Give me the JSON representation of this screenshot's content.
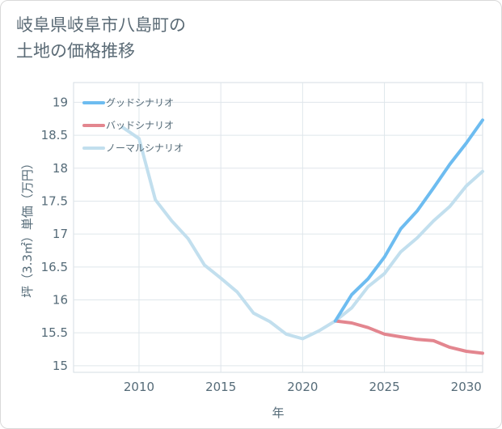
{
  "title_lines": [
    "岐阜県岐阜市八島町の",
    "土地の価格推移"
  ],
  "chart_data": {
    "type": "line",
    "xlabel": "年",
    "ylabel": "坪（3.3㎡）単価（万円）",
    "xlim": [
      2006,
      2031
    ],
    "ylim": [
      14.9,
      19.3
    ],
    "xticks": [
      2010,
      2015,
      2020,
      2025,
      2030
    ],
    "yticks": [
      15,
      15.5,
      16,
      16.5,
      17,
      17.5,
      18,
      18.5,
      19
    ],
    "ytick_labels": [
      "15",
      "15.5",
      "16",
      "16.5",
      "17",
      "17.5",
      "18",
      "18.5",
      "19"
    ],
    "grid": true,
    "legend_position": "top-left",
    "series": [
      {
        "name": "グッドシナリオ",
        "color": "#6dbcf0",
        "points": [
          [
            2022,
            15.68
          ],
          [
            2023,
            16.08
          ],
          [
            2024,
            16.32
          ],
          [
            2025,
            16.65
          ],
          [
            2026,
            17.08
          ],
          [
            2027,
            17.35
          ],
          [
            2028,
            17.7
          ],
          [
            2029,
            18.06
          ],
          [
            2030,
            18.38
          ],
          [
            2031,
            18.73
          ]
        ]
      },
      {
        "name": "バッドシナリオ",
        "color": "#e3868f",
        "points": [
          [
            2022,
            15.68
          ],
          [
            2023,
            15.65
          ],
          [
            2024,
            15.58
          ],
          [
            2025,
            15.48
          ],
          [
            2026,
            15.44
          ],
          [
            2027,
            15.4
          ],
          [
            2028,
            15.38
          ],
          [
            2029,
            15.28
          ],
          [
            2030,
            15.22
          ],
          [
            2031,
            15.19
          ]
        ]
      },
      {
        "name": "ノーマルシナリオ",
        "color": "#c2dfee",
        "points": [
          [
            2009,
            18.62
          ],
          [
            2010,
            18.45
          ],
          [
            2011,
            17.52
          ],
          [
            2012,
            17.2
          ],
          [
            2013,
            16.93
          ],
          [
            2014,
            16.53
          ],
          [
            2015,
            16.33
          ],
          [
            2016,
            16.12
          ],
          [
            2017,
            15.8
          ],
          [
            2018,
            15.67
          ],
          [
            2019,
            15.48
          ],
          [
            2020,
            15.41
          ],
          [
            2021,
            15.53
          ],
          [
            2022,
            15.68
          ],
          [
            2023,
            15.88
          ],
          [
            2024,
            16.2
          ],
          [
            2025,
            16.4
          ],
          [
            2026,
            16.73
          ],
          [
            2027,
            16.94
          ],
          [
            2028,
            17.2
          ],
          [
            2029,
            17.42
          ],
          [
            2030,
            17.73
          ],
          [
            2031,
            17.95
          ]
        ]
      }
    ]
  }
}
